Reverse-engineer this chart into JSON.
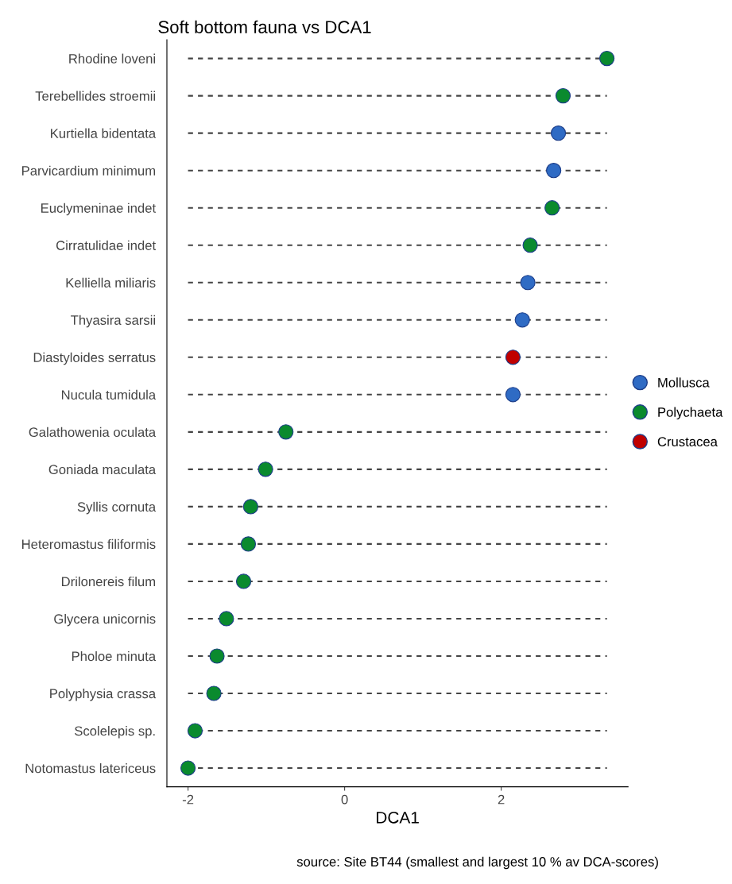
{
  "chart_data": {
    "type": "scatter",
    "orientation": "horizontal",
    "title": "Soft bottom fauna vs DCA1",
    "xlabel": "DCA1",
    "categories": [
      "Rhodine loveni",
      "Terebellides stroemii",
      "Kurtiella bidentata",
      "Parvicardium minimum",
      "Euclymeninae indet",
      "Cirratulidae indet",
      "Kelliella miliaris",
      "Thyasira sarsii",
      "Diastyloides serratus",
      "Nucula tumidula",
      "Galathowenia oculata",
      "Goniada maculata",
      "Syllis cornuta",
      "Heteromastus filiformis",
      "Drilonereis filum",
      "Glycera unicornis",
      "Pholoe minuta",
      "Polyphysia crassa",
      "Scolelepis sp.",
      "Notomastus latericeus"
    ],
    "series": [
      {
        "name": "Mollusca",
        "color": "#2f6bc4",
        "values": [
          null,
          null,
          2.73,
          2.67,
          null,
          null,
          2.34,
          2.27,
          null,
          2.15,
          null,
          null,
          null,
          null,
          null,
          null,
          null,
          null,
          null,
          null
        ]
      },
      {
        "name": "Polychaeta",
        "color": "#0a8a2e",
        "values": [
          3.35,
          2.79,
          null,
          null,
          2.65,
          2.37,
          null,
          null,
          null,
          null,
          -0.75,
          -1.01,
          -1.2,
          -1.23,
          -1.29,
          -1.51,
          -1.63,
          -1.67,
          -1.91,
          -2.0
        ]
      },
      {
        "name": "Crustacea",
        "color": "#c00000",
        "values": [
          null,
          null,
          null,
          null,
          null,
          null,
          null,
          null,
          2.15,
          null,
          null,
          null,
          null,
          null,
          null,
          null,
          null,
          null,
          null,
          null
        ]
      }
    ],
    "xlim": [
      -2.27,
      3.62
    ],
    "xticks": [
      -2,
      0,
      2
    ],
    "grid": false,
    "legend": "right",
    "marker": "circle",
    "line_style": "dashed",
    "annotations": [
      "source: Site BT44 (smallest and largest 10 % av DCA-scores)"
    ]
  }
}
